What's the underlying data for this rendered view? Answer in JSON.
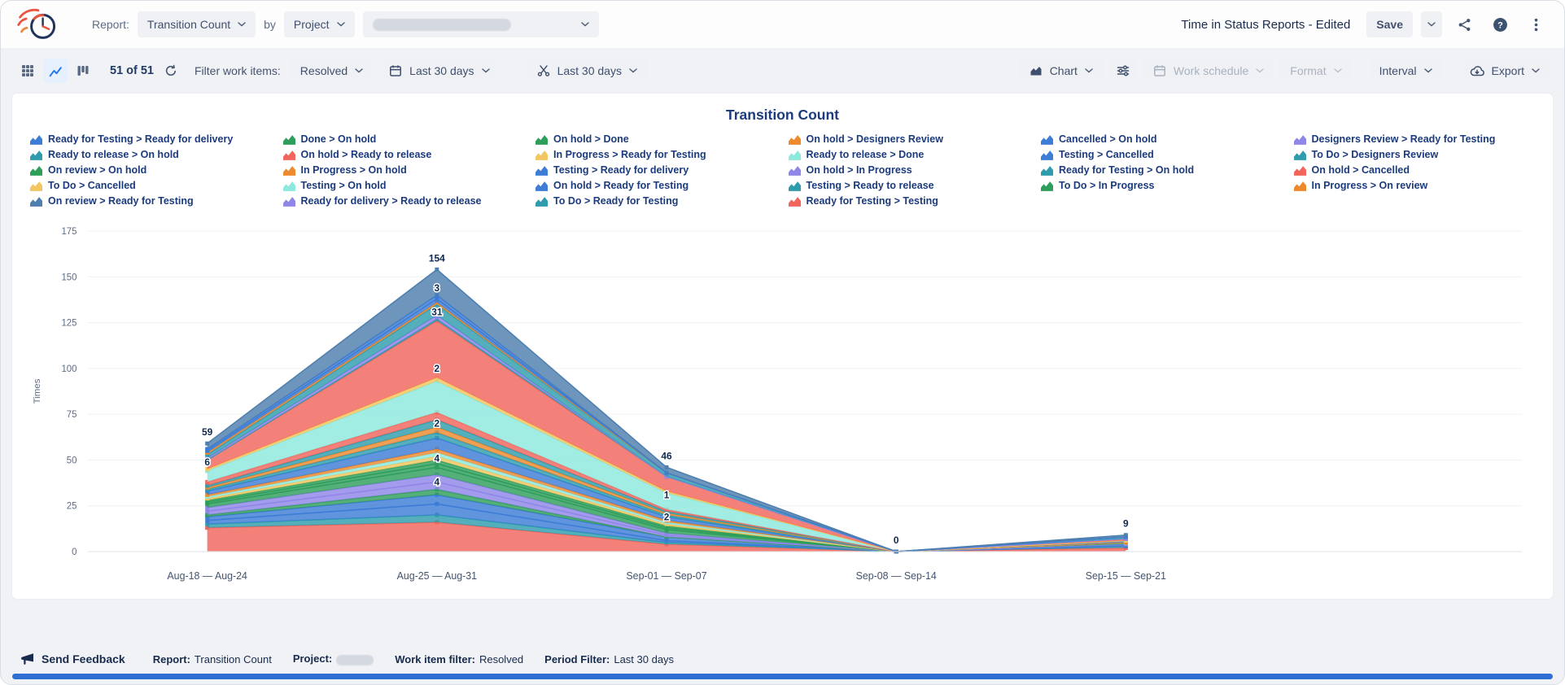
{
  "header": {
    "report_label": "Report:",
    "report_type": "Transition Count",
    "by_label": "by",
    "group_by": "Project",
    "doc_title": "Time in Status Reports - Edited",
    "save_label": "Save"
  },
  "toolbar": {
    "count_text": "51 of 51",
    "filter_label": "Filter work items:",
    "work_item_filter": "Resolved",
    "period_filter_1": "Last 30 days",
    "period_filter_2": "Last 30 days",
    "chart_label": "Chart",
    "work_schedule_label": "Work schedule",
    "format_label": "Format",
    "interval_label": "Interval",
    "export_label": "Export"
  },
  "footer": {
    "send_feedback": "Send Feedback",
    "report_label": "Report:",
    "report_value": "Transition Count",
    "project_label": "Project:",
    "work_item_filter_label": "Work item filter:",
    "work_item_filter_value": "Resolved",
    "period_filter_label": "Period Filter:",
    "period_filter_value": "Last 30 days"
  },
  "icons": {
    "help_glyph": "?"
  },
  "colors": {
    "accent": "#2277e8",
    "bottom_bar": "#2f6fd4",
    "title_navy": "#1c3b7d"
  },
  "chart_data": {
    "type": "area",
    "stacked": true,
    "title": "Transition Count",
    "ylabel": "Times",
    "xlabel": "",
    "ylim": [
      0,
      175
    ],
    "yticks": [
      0,
      25,
      50,
      75,
      100,
      125,
      150,
      175
    ],
    "x_labels": [
      "Aug-18 — Aug-24",
      "Aug-25 — Aug-31",
      "Sep-01 — Sep-07",
      "Sep-08 — Sep-14",
      "Sep-15 — Sep-21"
    ],
    "totals": [
      59,
      154,
      46,
      0,
      9
    ],
    "legend_position": "top",
    "legend_layout": [
      5,
      5,
      5,
      5,
      4,
      4
    ],
    "series": [
      {
        "name": "Ready for Testing > Ready for delivery",
        "color": "#3d7dd6",
        "values": [
          2,
          6,
          2,
          0,
          1
        ]
      },
      {
        "name": "Ready to release > On hold",
        "color": "#2e9cad",
        "values": [
          1,
          3,
          1,
          0,
          0
        ]
      },
      {
        "name": "On review > On hold",
        "color": "#2e9e5b",
        "values": [
          1,
          2,
          1,
          0,
          0
        ]
      },
      {
        "name": "To Do > Cancelled",
        "color": "#f2c660",
        "values": [
          1,
          2,
          1,
          0,
          0
        ]
      },
      {
        "name": "On review > Ready for Testing",
        "color": "#4e7fae",
        "values": [
          3,
          14,
          3,
          0,
          1
        ]
      },
      {
        "name": "Done > On hold",
        "color": "#2e9e5b",
        "values": [
          1,
          2,
          1,
          0,
          0
        ]
      },
      {
        "name": "On hold > Ready to release",
        "color": "#f2655c",
        "values": [
          2,
          4,
          1,
          0,
          0
        ]
      },
      {
        "name": "In Progress > On hold",
        "color": "#ee8a2e",
        "values": [
          1,
          2,
          1,
          0,
          0
        ]
      },
      {
        "name": "Testing > On hold",
        "color": "#8ce9de",
        "values": [
          1,
          2,
          1,
          0,
          0
        ]
      },
      {
        "name": "Ready for delivery > Ready to release",
        "color": "#8f86e8",
        "values": [
          2,
          4,
          1,
          0,
          0
        ]
      },
      {
        "name": "On hold > Done",
        "color": "#2e9e5b",
        "values": [
          2,
          4,
          2,
          0,
          1
        ]
      },
      {
        "name": "In Progress > Ready for Testing",
        "color": "#f2c660",
        "values": [
          1,
          2,
          1,
          0,
          0
        ]
      },
      {
        "name": "Testing > Ready for delivery",
        "color": "#3d7dd6",
        "values": [
          2,
          5,
          2,
          0,
          1
        ]
      },
      {
        "name": "On hold > Ready for Testing",
        "color": "#3d7dd6",
        "values": [
          2,
          6,
          1,
          0,
          0
        ]
      },
      {
        "name": "To Do > Ready for Testing",
        "color": "#2e9cad",
        "values": [
          2,
          4,
          1,
          0,
          1
        ]
      },
      {
        "name": "On hold > Designers Review",
        "color": "#ee8a2e",
        "values": [
          1,
          3,
          1,
          0,
          0
        ]
      },
      {
        "name": "Ready to release > Done",
        "color": "#8ce9de",
        "values": [
          6,
          17,
          9,
          0,
          0
        ]
      },
      {
        "name": "On hold > In Progress",
        "color": "#8f86e8",
        "values": [
          2,
          4,
          1,
          0,
          0
        ]
      },
      {
        "name": "Testing > Ready to release",
        "color": "#2e9cad",
        "values": [
          1,
          4,
          1,
          0,
          0
        ]
      },
      {
        "name": "Ready for Testing > Testing",
        "color": "#f2655c",
        "values": [
          13,
          16,
          4,
          0,
          2
        ]
      },
      {
        "name": "Cancelled > On hold",
        "color": "#3d7dd6",
        "values": [
          1,
          2,
          0,
          0,
          0
        ]
      },
      {
        "name": "Testing > Cancelled",
        "color": "#3d7dd6",
        "values": [
          1,
          2,
          0,
          0,
          0
        ]
      },
      {
        "name": "Ready for Testing > On hold",
        "color": "#2e9cad",
        "values": [
          2,
          6,
          2,
          0,
          1
        ]
      },
      {
        "name": "To Do > In Progress",
        "color": "#2e9e5b",
        "values": [
          1,
          3,
          0,
          0,
          0
        ]
      },
      {
        "name": "Designers Review > Ready for Testing",
        "color": "#8f86e8",
        "values": [
          1,
          2,
          0,
          0,
          0
        ]
      },
      {
        "name": "To Do > Designers Review",
        "color": "#2e9cad",
        "values": [
          0,
          1,
          0,
          0,
          0
        ]
      },
      {
        "name": "On hold > Cancelled",
        "color": "#f2655c",
        "values": [
          5,
          31,
          8,
          0,
          1
        ]
      },
      {
        "name": "In Progress > On review",
        "color": "#ee8a2e",
        "values": [
          1,
          1,
          0,
          0,
          0
        ]
      }
    ],
    "stack_order": [
      19,
      14,
      13,
      12,
      23,
      17,
      9,
      10,
      5,
      2,
      11,
      8,
      7,
      0,
      1,
      15,
      18,
      6,
      16,
      3,
      26,
      25,
      24,
      22,
      27,
      21,
      20,
      4
    ],
    "annotations": [
      {
        "x": 0,
        "y": 44,
        "text": "6"
      },
      {
        "x": 1,
        "y": 139,
        "text": "3"
      },
      {
        "x": 1,
        "y": 126,
        "text": "31"
      },
      {
        "x": 1,
        "y": 95,
        "text": "2"
      },
      {
        "x": 1,
        "y": 65,
        "text": "2"
      },
      {
        "x": 1,
        "y": 46,
        "text": "4"
      },
      {
        "x": 1,
        "y": 33,
        "text": "4"
      },
      {
        "x": 2,
        "y": 26,
        "text": "1"
      },
      {
        "x": 2,
        "y": 14,
        "text": "2"
      }
    ]
  }
}
